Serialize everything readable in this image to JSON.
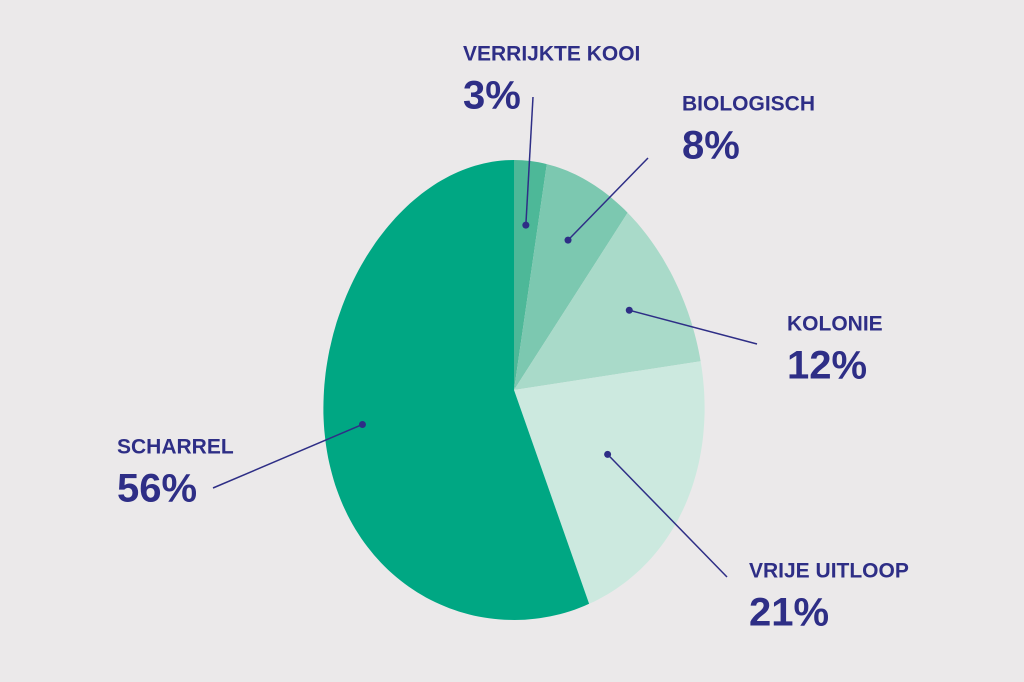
{
  "chart_data": {
    "type": "pie",
    "categories": [
      "VERRIJKTE KOOI",
      "BIOLOGISCH",
      "KOLONIE",
      "VRIJE UITLOOP",
      "SCHARREL"
    ],
    "values": [
      3,
      8,
      12,
      21,
      56
    ],
    "value_labels": [
      "3%",
      "8%",
      "12%",
      "21%",
      "56%"
    ],
    "colors": [
      "#4db898",
      "#7cc8b0",
      "#a9dac9",
      "#cce9df",
      "#00a783"
    ]
  }
}
